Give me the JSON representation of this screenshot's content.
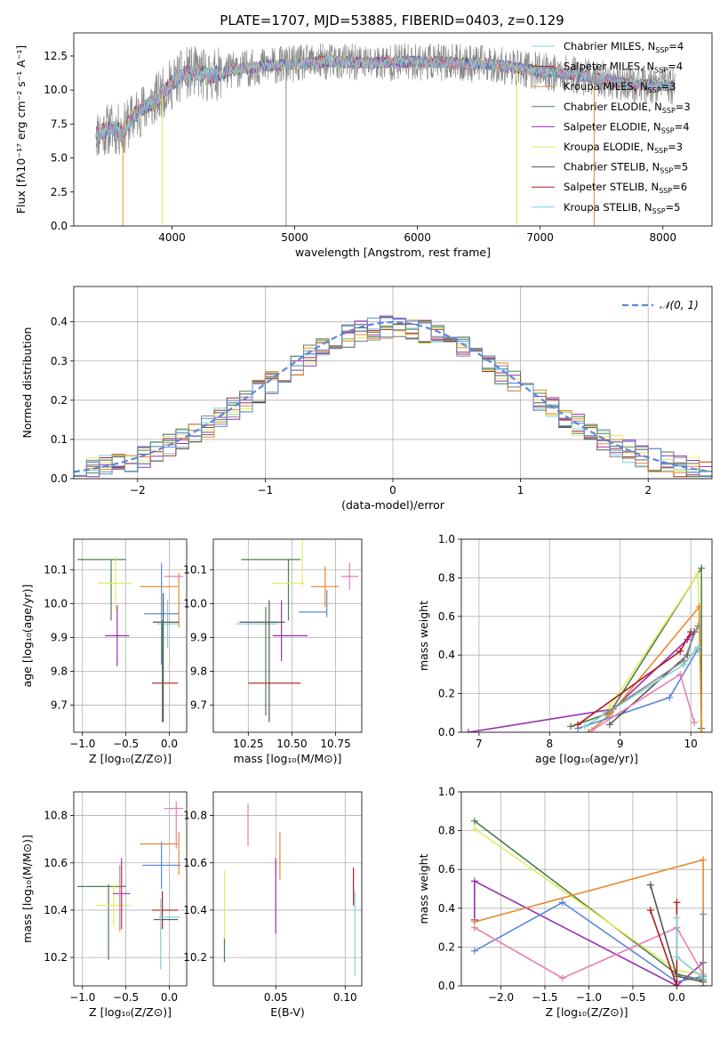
{
  "title": "PLATE=1707, MJD=53885, FIBERID=0403, z=0.129",
  "palette": [
    "#7fd0d6",
    "#9c2e2e",
    "#555555",
    "#e3ec60",
    "#9a2fb0",
    "#4d7f4d",
    "#e58a2e",
    "#8a8a8a",
    "#5b87d8",
    "#e77fb0"
  ],
  "chart_data": [
    {
      "id": "spectrum",
      "type": "line",
      "xlabel": "wavelength [Angstrom, rest frame]",
      "ylabel": "Flux [fλ10⁻¹⁷ erg cm⁻² s⁻¹ A⁻¹]",
      "xlim": [
        3200,
        8400
      ],
      "ylim": [
        0,
        14.2
      ],
      "xticks": [
        4000,
        5000,
        6000,
        7000,
        8000
      ],
      "yticks": [
        0.0,
        2.5,
        5.0,
        7.5,
        10.0,
        12.5
      ],
      "grid": false,
      "legend_position": "top-right",
      "legend": [
        {
          "label": "Chabrier MILES, N",
          "sub": "SSP",
          "tail": "=4",
          "color": "#7fd0d6"
        },
        {
          "label": "Salpeter MILES, N",
          "sub": "SSP",
          "tail": "=4",
          "color": "#9c2e2e"
        },
        {
          "label": "Kroupa MILES, N",
          "sub": "SSP",
          "tail": "=3",
          "color": "#e58a2e"
        },
        {
          "label": "Chabrier ELODIE, N",
          "sub": "SSP",
          "tail": "=3",
          "color": "#4d7f4d"
        },
        {
          "label": "Salpeter ELODIE, N",
          "sub": "SSP",
          "tail": "=4",
          "color": "#9a2fb0"
        },
        {
          "label": "Kroupa ELODIE, N",
          "sub": "SSP",
          "tail": "=3",
          "color": "#e3ec60"
        },
        {
          "label": "Chabrier STELIB, N",
          "sub": "SSP",
          "tail": "=5",
          "color": "#555555"
        },
        {
          "label": "Salpeter STELIB, N",
          "sub": "SSP",
          "tail": "=6",
          "color": "#b01c1c"
        },
        {
          "label": "Kroupa STELIB, N",
          "sub": "SSP",
          "tail": "=5",
          "color": "#7fd0d6"
        }
      ],
      "data_envelope": {
        "x": [
          3380,
          3500,
          3600,
          3700,
          3800,
          3900,
          4000,
          4100,
          4200,
          4300,
          4500,
          4800,
          5000,
          5300,
          5600,
          6000,
          6300,
          6600,
          6900,
          7200,
          7500,
          7800,
          8100
        ],
        "y": [
          6.8,
          7.2,
          7.0,
          8.2,
          8.8,
          9.5,
          10.5,
          11.2,
          11.3,
          11.0,
          11.5,
          11.8,
          11.9,
          12.1,
          12.0,
          12.1,
          12.0,
          11.9,
          11.5,
          11.2,
          10.8,
          10.4,
          10.3
        ]
      },
      "drop_lines_x": [
        3600,
        3920,
        4930,
        6810,
        7440
      ]
    },
    {
      "id": "residuals",
      "type": "line",
      "xlabel": "(data-model)/error",
      "ylabel": "Normed distribution",
      "xlim": [
        -2.5,
        2.5
      ],
      "ylim": [
        0,
        0.49
      ],
      "xticks": [
        -2,
        -1,
        0,
        1,
        2
      ],
      "yticks": [
        0.0,
        0.1,
        0.2,
        0.3,
        0.4
      ],
      "grid": true,
      "legend_position": "top-right",
      "legend_label": "𝒩(0, 1)",
      "gauss_color": "#5b87d8"
    },
    {
      "id": "age_vs_Z",
      "type": "scatter",
      "xlabel": "Z [log₁₀(Z/Z⊙)]",
      "ylabel": "age  [log₁₀(age/yr)]",
      "xlim": [
        -1.1,
        0.2
      ],
      "ylim": [
        9.62,
        10.19
      ],
      "xticks": [
        -1.0,
        -0.5,
        0.0
      ],
      "yticks": [
        9.7,
        9.8,
        9.9,
        10.0,
        10.1
      ],
      "points": [
        {
          "x": -0.78,
          "y": 10.13,
          "xe": 0.28,
          "ye": 0.0,
          "c": "#4d7f4d"
        },
        {
          "x": -0.67,
          "y": 10.04,
          "xe": 0.0,
          "ye": 0.09,
          "c": "#4d7f4d"
        },
        {
          "x": -0.62,
          "y": 10.06,
          "xe": 0.2,
          "ye": 0.08,
          "c": "#e3ec60"
        },
        {
          "x": -0.6,
          "y": 9.905,
          "xe": 0.14,
          "ye": 0.09,
          "c": "#9a2fb0"
        },
        {
          "x": -0.12,
          "y": 10.05,
          "xe": 0.22,
          "ye": 0.0,
          "c": "#e58a2e"
        },
        {
          "x": 0.11,
          "y": 10.01,
          "xe": 0.0,
          "ye": 0.08,
          "c": "#e58a2e"
        },
        {
          "x": -0.09,
          "y": 9.97,
          "xe": 0.2,
          "ye": 0.15,
          "c": "#5b87d8"
        },
        {
          "x": 0.05,
          "y": 10.08,
          "xe": 0.11,
          "ye": 0.0,
          "c": "#e77fb0"
        },
        {
          "x": -0.02,
          "y": 9.94,
          "xe": 0.12,
          "ye": 0.07,
          "c": "#7fd0d6"
        },
        {
          "x": -0.04,
          "y": 9.945,
          "xe": 0.15,
          "ye": 0.0,
          "c": "#555555"
        },
        {
          "x": -0.07,
          "y": 9.84,
          "xe": 0.0,
          "ye": 0.19,
          "c": "#555555"
        },
        {
          "x": -0.05,
          "y": 9.765,
          "xe": 0.15,
          "ye": 0.0,
          "c": "#b01c1c"
        },
        {
          "x": -0.08,
          "y": 9.8,
          "xe": 0.0,
          "ye": 0.15,
          "c": "#4d7f4d"
        }
      ]
    },
    {
      "id": "age_vs_mass",
      "type": "scatter",
      "xlabel": "mass [log₁₀(M/M⊙)]",
      "ylabel": "",
      "xlim": [
        10.05,
        10.9
      ],
      "ylim": [
        9.62,
        10.19
      ],
      "xticks": [
        10.25,
        10.5,
        10.75
      ],
      "yticks": [
        9.7,
        9.8,
        9.9,
        10.0,
        10.1
      ],
      "points": [
        {
          "x": 10.38,
          "y": 10.13,
          "xe": 0.17,
          "ye": 0.0,
          "c": "#4d7f4d"
        },
        {
          "x": 10.48,
          "y": 10.04,
          "xe": 0.0,
          "ye": 0.09,
          "c": "#4d7f4d"
        },
        {
          "x": 10.48,
          "y": 10.06,
          "xe": 0.09,
          "ye": 0.0,
          "c": "#e3ec60"
        },
        {
          "x": 10.56,
          "y": 10.12,
          "xe": 0.0,
          "ye": 0.07,
          "c": "#e3ec60"
        },
        {
          "x": 10.49,
          "y": 9.905,
          "xe": 0.1,
          "ye": 0.0,
          "c": "#9a2fb0"
        },
        {
          "x": 10.44,
          "y": 9.92,
          "xe": 0.0,
          "ye": 0.09,
          "c": "#9a2fb0"
        },
        {
          "x": 10.69,
          "y": 10.05,
          "xe": 0.08,
          "ye": 0.06,
          "c": "#e58a2e"
        },
        {
          "x": 10.62,
          "y": 9.975,
          "xe": 0.08,
          "ye": 0.0,
          "c": "#5b87d8"
        },
        {
          "x": 10.7,
          "y": 10.0,
          "xe": 0.0,
          "ye": 0.04,
          "c": "#5b87d8"
        },
        {
          "x": 10.83,
          "y": 10.08,
          "xe": 0.05,
          "ye": 0.04,
          "c": "#e77fb0"
        },
        {
          "x": 10.3,
          "y": 9.94,
          "xe": 0.12,
          "ye": 0.0,
          "c": "#7fd0d6"
        },
        {
          "x": 10.33,
          "y": 9.945,
          "xe": 0.13,
          "ye": 0.0,
          "c": "#555555"
        },
        {
          "x": 10.37,
          "y": 9.83,
          "xe": 0.0,
          "ye": 0.18,
          "c": "#555555"
        },
        {
          "x": 10.4,
          "y": 9.765,
          "xe": 0.15,
          "ye": 0.0,
          "c": "#b01c1c"
        },
        {
          "x": 10.35,
          "y": 9.83,
          "xe": 0.0,
          "ye": 0.16,
          "c": "#4d7f4d"
        }
      ]
    },
    {
      "id": "weight_vs_age",
      "type": "line",
      "xlabel": "age  [log₁₀(age/yr)]",
      "ylabel": "mass weight",
      "xlim": [
        6.75,
        10.3
      ],
      "ylim": [
        0.0,
        1.0
      ],
      "xticks": [
        7,
        8,
        9,
        10
      ],
      "yticks": [
        0.0,
        0.2,
        0.4,
        0.6,
        0.8,
        1.0
      ],
      "grid": true,
      "series": [
        {
          "c": "#9a2fb0",
          "x": [
            6.85,
            8.9,
            9.95,
            10.05
          ],
          "y": [
            0.0,
            0.12,
            0.48,
            0.52
          ]
        },
        {
          "c": "#4d7f4d",
          "x": [
            8.3,
            8.85,
            10.15,
            10.15
          ],
          "y": [
            0.03,
            0.1,
            0.85,
            0.02
          ]
        },
        {
          "c": "#e3ec60",
          "x": [
            8.85,
            10.1,
            10.15
          ],
          "y": [
            0.13,
            0.82,
            0.06
          ]
        },
        {
          "c": "#e58a2e",
          "x": [
            8.55,
            8.85,
            10.12,
            10.15
          ],
          "y": [
            0.0,
            0.09,
            0.65,
            0.0
          ]
        },
        {
          "c": "#5b87d8",
          "x": [
            8.4,
            9.7,
            10.1
          ],
          "y": [
            0.02,
            0.18,
            0.43
          ]
        },
        {
          "c": "#b01c1c",
          "x": [
            8.4,
            9.85,
            10.0
          ],
          "y": [
            0.04,
            0.42,
            0.52
          ]
        },
        {
          "c": "#555555",
          "x": [
            8.85,
            9.95,
            10.05
          ],
          "y": [
            0.04,
            0.4,
            0.52
          ]
        },
        {
          "c": "#7fd0d6",
          "x": [
            8.5,
            9.9,
            10.1
          ],
          "y": [
            0.03,
            0.35,
            0.44
          ]
        },
        {
          "c": "#e77fb0",
          "x": [
            8.6,
            9.85,
            10.05
          ],
          "y": [
            0.01,
            0.3,
            0.05
          ]
        },
        {
          "c": "#8a8a8a",
          "x": [
            8.8,
            9.9,
            10.1
          ],
          "y": [
            0.1,
            0.37,
            0.55
          ]
        }
      ]
    },
    {
      "id": "mass_vs_Z",
      "type": "scatter",
      "xlabel": "Z [log₁₀(Z/Z⊙)]",
      "ylabel": "mass [log₁₀(M/M⊙)]",
      "xlim": [
        -1.1,
        0.2
      ],
      "ylim": [
        10.08,
        10.9
      ],
      "xticks": [
        -1.0,
        -0.5,
        0.0
      ],
      "yticks": [
        10.2,
        10.4,
        10.6,
        10.8
      ],
      "points": [
        {
          "x": -0.78,
          "y": 10.5,
          "xe": 0.28,
          "ye": 0.0,
          "c": "#4d7f4d"
        },
        {
          "x": -0.7,
          "y": 10.35,
          "xe": 0.0,
          "ye": 0.16,
          "c": "#4d7f4d"
        },
        {
          "x": -0.64,
          "y": 10.42,
          "xe": 0.2,
          "ye": 0.09,
          "c": "#e3ec60"
        },
        {
          "x": -0.55,
          "y": 10.47,
          "xe": 0.1,
          "ye": 0.15,
          "c": "#9a2fb0"
        },
        {
          "x": -0.57,
          "y": 10.45,
          "xe": 0.0,
          "ye": 0.14,
          "c": "#e58a2e"
        },
        {
          "x": -0.12,
          "y": 10.68,
          "xe": 0.22,
          "ye": 0.0,
          "c": "#e58a2e"
        },
        {
          "x": 0.11,
          "y": 10.64,
          "xe": 0.0,
          "ye": 0.09,
          "c": "#e58a2e"
        },
        {
          "x": -0.09,
          "y": 10.59,
          "xe": 0.22,
          "ye": 0.1,
          "c": "#5b87d8"
        },
        {
          "x": 0.05,
          "y": 10.83,
          "xe": 0.11,
          "ye": 0.0,
          "c": "#e77fb0"
        },
        {
          "x": 0.08,
          "y": 10.76,
          "xe": 0.0,
          "ye": 0.1,
          "c": "#e77fb0"
        },
        {
          "x": -0.05,
          "y": 10.4,
          "xe": 0.15,
          "ye": 0.0,
          "c": "#b01c1c"
        },
        {
          "x": -0.08,
          "y": 10.4,
          "xe": 0.0,
          "ye": 0.08,
          "c": "#b01c1c"
        },
        {
          "x": -0.04,
          "y": 10.36,
          "xe": 0.14,
          "ye": 0.0,
          "c": "#555555"
        },
        {
          "x": -0.1,
          "y": 10.3,
          "xe": 0.0,
          "ye": 0.15,
          "c": "#7fd0d6"
        },
        {
          "x": 0.0,
          "y": 10.37,
          "xe": 0.12,
          "ye": 0.0,
          "c": "#7fd0d6"
        }
      ]
    },
    {
      "id": "mass_vs_ebv",
      "type": "scatter",
      "xlabel": "E(B-V)",
      "ylabel": "",
      "xlim": [
        0.005,
        0.112
      ],
      "ylim": [
        10.08,
        10.9
      ],
      "xticks": [
        0.05,
        0.1
      ],
      "yticks": [
        10.2,
        10.4,
        10.6,
        10.8
      ],
      "points": [
        {
          "x": 0.013,
          "y": 10.4,
          "xe": 0.0,
          "ye": 0.17,
          "c": "#e3ec60"
        },
        {
          "x": 0.013,
          "y": 10.23,
          "xe": 0.0,
          "ye": 0.05,
          "c": "#4d7f4d"
        },
        {
          "x": 0.03,
          "y": 10.76,
          "xe": 0.0,
          "ye": 0.09,
          "c": "#e77fb0"
        },
        {
          "x": 0.05,
          "y": 10.46,
          "xe": 0.0,
          "ye": 0.16,
          "c": "#9a2fb0"
        },
        {
          "x": 0.053,
          "y": 10.63,
          "xe": 0.0,
          "ye": 0.1,
          "c": "#e58a2e"
        },
        {
          "x": 0.106,
          "y": 10.5,
          "xe": 0.0,
          "ye": 0.08,
          "c": "#b01c1c"
        },
        {
          "x": 0.107,
          "y": 10.3,
          "xe": 0.0,
          "ye": 0.18,
          "c": "#7fd0d6"
        }
      ]
    },
    {
      "id": "weight_vs_Z",
      "type": "line",
      "xlabel": "Z [log₁₀(Z/Z⊙)]",
      "ylabel": "mass weight",
      "xlim": [
        -2.45,
        0.4
      ],
      "ylim": [
        0.0,
        1.0
      ],
      "xticks": [
        -2.0,
        -1.5,
        -1.0,
        -0.5,
        0.0
      ],
      "yticks": [
        0.0,
        0.2,
        0.4,
        0.6,
        0.8,
        1.0
      ],
      "grid": true,
      "series": [
        {
          "c": "#4d7f4d",
          "x": [
            -2.3,
            0.0,
            0.3
          ],
          "y": [
            0.85,
            0.06,
            0.03
          ]
        },
        {
          "c": "#e3ec60",
          "x": [
            -2.3,
            0.0,
            0.3
          ],
          "y": [
            0.81,
            0.08,
            0.06
          ]
        },
        {
          "c": "#9a2fb0",
          "x": [
            -2.3,
            -2.3,
            0.0,
            0.3
          ],
          "y": [
            0.34,
            0.54,
            0.0,
            0.12
          ]
        },
        {
          "c": "#e58a2e",
          "x": [
            -2.3,
            0.3,
            0.3
          ],
          "y": [
            0.33,
            0.65,
            0.0
          ]
        },
        {
          "c": "#5b87d8",
          "x": [
            -2.3,
            -1.3,
            0.0,
            0.3
          ],
          "y": [
            0.18,
            0.43,
            0.02,
            0.05
          ]
        },
        {
          "c": "#e77fb0",
          "x": [
            -2.3,
            -1.3,
            0.0,
            0.3
          ],
          "y": [
            0.3,
            0.04,
            0.3,
            0.06
          ]
        },
        {
          "c": "#b01c1c",
          "x": [
            -0.3,
            0.0,
            0.0
          ],
          "y": [
            0.39,
            0.0,
            0.43
          ]
        },
        {
          "c": "#555555",
          "x": [
            -0.3,
            0.0,
            0.3
          ],
          "y": [
            0.52,
            0.05,
            0.02
          ]
        },
        {
          "c": "#7fd0d6",
          "x": [
            0.0,
            0.0,
            0.3
          ],
          "y": [
            0.35,
            0.15,
            0.04
          ]
        },
        {
          "c": "#8a8a8a",
          "x": [
            0.3,
            0.3
          ],
          "y": [
            0.37,
            0.0
          ]
        }
      ]
    }
  ]
}
